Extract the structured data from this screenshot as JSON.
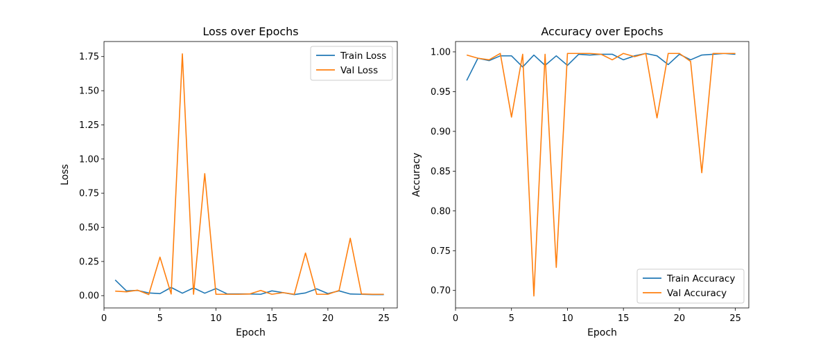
{
  "chart_data": [
    {
      "type": "line",
      "title": "Loss over Epochs",
      "xlabel": "Epoch",
      "ylabel": "Loss",
      "xlim": [
        0,
        26.2
      ],
      "ylim": [
        -0.09,
        1.86
      ],
      "xticks": [
        0,
        5,
        10,
        15,
        20,
        25
      ],
      "yticks": [
        0.0,
        0.25,
        0.5,
        0.75,
        1.0,
        1.25,
        1.5,
        1.75
      ],
      "ytick_labels": [
        "0.00",
        "0.25",
        "0.50",
        "0.75",
        "1.00",
        "1.25",
        "1.50",
        "1.75"
      ],
      "legend_position": "top-right",
      "x": [
        1,
        2,
        3,
        4,
        5,
        6,
        7,
        8,
        9,
        10,
        11,
        12,
        13,
        14,
        15,
        16,
        17,
        18,
        19,
        20,
        21,
        22,
        23,
        24,
        25
      ],
      "series": [
        {
          "name": "Train Loss",
          "color": "#1f77b4",
          "values": [
            0.115,
            0.035,
            0.038,
            0.02,
            0.015,
            0.06,
            0.018,
            0.057,
            0.018,
            0.052,
            0.013,
            0.012,
            0.012,
            0.01,
            0.035,
            0.022,
            0.008,
            0.02,
            0.05,
            0.015,
            0.035,
            0.012,
            0.01,
            0.008,
            0.008
          ]
        },
        {
          "name": "Val Loss",
          "color": "#ff7f0e",
          "values": [
            0.033,
            0.028,
            0.04,
            0.008,
            0.282,
            0.012,
            1.77,
            0.01,
            0.893,
            0.01,
            0.01,
            0.01,
            0.012,
            0.038,
            0.01,
            0.022,
            0.01,
            0.312,
            0.01,
            0.01,
            0.038,
            0.42,
            0.012,
            0.01,
            0.01
          ]
        }
      ]
    },
    {
      "type": "line",
      "title": "Accuracy over Epochs",
      "xlabel": "Epoch",
      "ylabel": "Accuracy",
      "xlim": [
        0,
        26.2
      ],
      "ylim": [
        0.678,
        1.013
      ],
      "xticks": [
        0,
        5,
        10,
        15,
        20,
        25
      ],
      "yticks": [
        0.7,
        0.75,
        0.8,
        0.85,
        0.9,
        0.95,
        1.0
      ],
      "ytick_labels": [
        "0.70",
        "0.75",
        "0.80",
        "0.85",
        "0.90",
        "0.95",
        "1.00"
      ],
      "legend_position": "bottom-right",
      "x": [
        1,
        2,
        3,
        4,
        5,
        6,
        7,
        8,
        9,
        10,
        11,
        12,
        13,
        14,
        15,
        16,
        17,
        18,
        19,
        20,
        21,
        22,
        23,
        24,
        25
      ],
      "series": [
        {
          "name": "Train Accuracy",
          "color": "#1f77b4",
          "values": [
            0.964,
            0.992,
            0.989,
            0.995,
            0.995,
            0.981,
            0.996,
            0.983,
            0.995,
            0.983,
            0.997,
            0.996,
            0.997,
            0.997,
            0.99,
            0.995,
            0.998,
            0.995,
            0.984,
            0.997,
            0.99,
            0.996,
            0.997,
            0.998,
            0.997
          ]
        },
        {
          "name": "Val Accuracy",
          "color": "#ff7f0e",
          "values": [
            0.996,
            0.992,
            0.99,
            0.998,
            0.918,
            0.997,
            0.693,
            0.997,
            0.729,
            0.998,
            0.998,
            0.998,
            0.997,
            0.99,
            0.998,
            0.994,
            0.998,
            0.917,
            0.998,
            0.998,
            0.988,
            0.848,
            0.998,
            0.998,
            0.998
          ]
        }
      ]
    }
  ]
}
